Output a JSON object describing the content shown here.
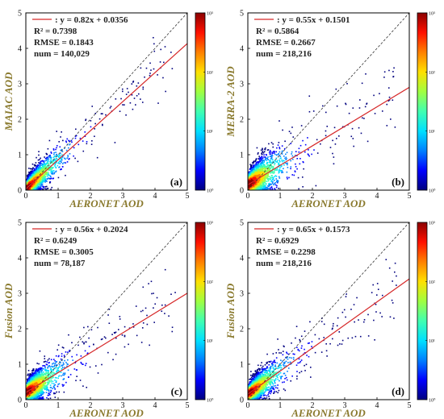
{
  "chart_data": [
    {
      "type": "scatter",
      "panel_tag": "(a)",
      "xlabel": "AERONET AOD",
      "ylabel": "MAIAC AOD",
      "xlim": [
        0,
        5
      ],
      "ylim": [
        0,
        5
      ],
      "xticks": [
        "0",
        "1",
        "2",
        "3",
        "4",
        "5"
      ],
      "yticks": [
        "0",
        "1",
        "2",
        "3",
        "4",
        "5"
      ],
      "colorbar_ticks": [
        "10⁰",
        "10¹",
        "10²",
        "10³"
      ],
      "fit": {
        "slope": 0.82,
        "intercept": 0.0356
      },
      "fit_text": ": y = 0.82x + 0.0356",
      "r2_text": "R² = 0.7398",
      "rmse_text": "RMSE = 0.1843",
      "num_text": "num = 140,029",
      "density_spread": 0.23,
      "legend": "top-left",
      "grid": false
    },
    {
      "type": "scatter",
      "panel_tag": "(b)",
      "xlabel": "AERONET AOD",
      "ylabel": "MERRA-2 AOD",
      "xlim": [
        0,
        5
      ],
      "ylim": [
        0,
        5
      ],
      "xticks": [
        "0",
        "1",
        "2",
        "3",
        "4",
        "5"
      ],
      "yticks": [
        "0",
        "1",
        "2",
        "3",
        "4",
        "5"
      ],
      "colorbar_ticks": [
        "10⁰",
        "10¹",
        "10²",
        "10³"
      ],
      "fit": {
        "slope": 0.55,
        "intercept": 0.1501
      },
      "fit_text": ": y = 0.55x + 0.1501",
      "r2_text": "R² = 0.5864",
      "rmse_text": "RMSE = 0.2667",
      "num_text": "num = 218,216",
      "density_spread": 0.33,
      "legend": "top-left",
      "grid": false
    },
    {
      "type": "scatter",
      "panel_tag": "(c)",
      "xlabel": "AERONET AOD",
      "ylabel": "Fusion AOD",
      "xlim": [
        0,
        5
      ],
      "ylim": [
        0,
        5
      ],
      "xticks": [
        "0",
        "1",
        "2",
        "3",
        "4",
        "5"
      ],
      "yticks": [
        "0",
        "1",
        "2",
        "3",
        "4",
        "5"
      ],
      "colorbar_ticks": [
        "10⁰",
        "10¹",
        "10²",
        "10³"
      ],
      "fit": {
        "slope": 0.56,
        "intercept": 0.2024
      },
      "fit_text": ": y = 0.56x + 0.2024",
      "r2_text": "R² = 0.6249",
      "rmse_text": "RMSE = 0.3005",
      "num_text": "num = 78,187",
      "density_spread": 0.28,
      "legend": "top-left",
      "grid": false
    },
    {
      "type": "scatter",
      "panel_tag": "(d)",
      "xlabel": "AERONET AOD",
      "ylabel": "Fusion AOD",
      "xlim": [
        0,
        5
      ],
      "ylim": [
        0,
        5
      ],
      "xticks": [
        "0",
        "1",
        "2",
        "3",
        "4",
        "5"
      ],
      "yticks": [
        "0",
        "1",
        "2",
        "3",
        "4",
        "5"
      ],
      "colorbar_ticks": [
        "10⁰",
        "10¹",
        "10²",
        "10³"
      ],
      "fit": {
        "slope": 0.65,
        "intercept": 0.1573
      },
      "fit_text": ": y = 0.65x + 0.1573",
      "r2_text": "R² = 0.6929",
      "rmse_text": "RMSE = 0.2298",
      "num_text": "num = 218,216",
      "density_spread": 0.25,
      "legend": "top-left",
      "grid": false
    }
  ],
  "colors": {
    "fit_line": "#d62728",
    "one_to_one_line": "#333333",
    "axis_label": "#8a7a2e",
    "colormap": [
      "#00007f",
      "#0000ff",
      "#0080ff",
      "#00e0ff",
      "#40ffb0",
      "#a0ff40",
      "#ffe000",
      "#ff8000",
      "#ff1000",
      "#8b0000"
    ]
  }
}
